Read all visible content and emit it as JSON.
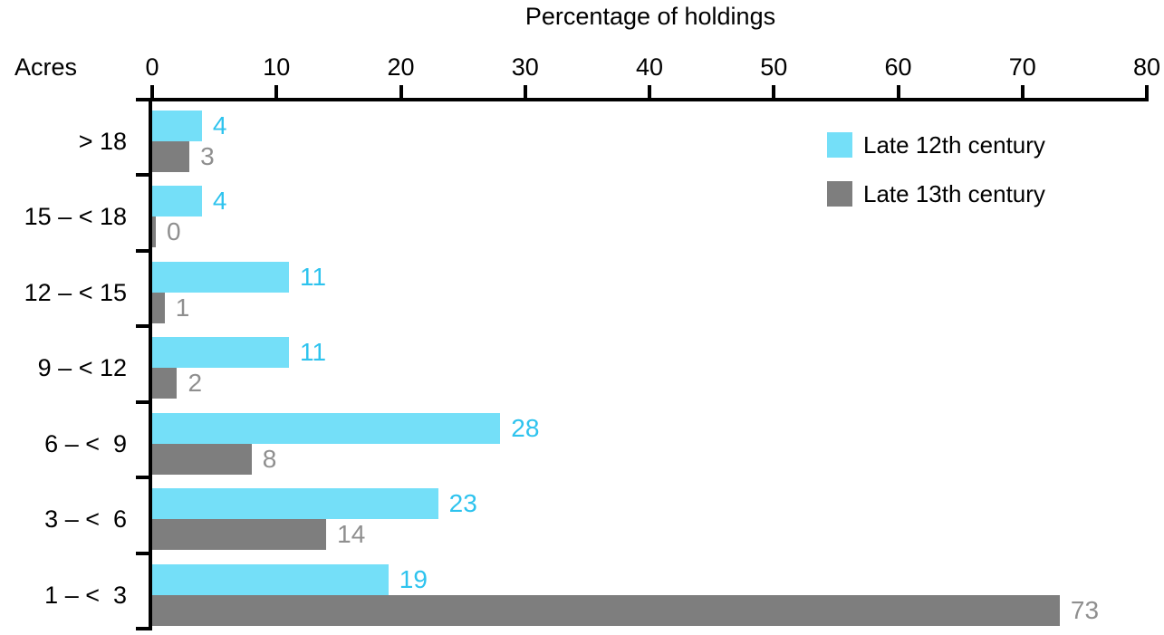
{
  "chart_data": {
    "type": "bar",
    "orientation": "horizontal",
    "title": "Percentage of holdings",
    "ylabel": "Acres",
    "categories": [
      "> 18",
      "15 – < 18",
      "12 – < 15",
      "9 – < 12",
      "6 – <  9",
      "3 – <  6",
      "1 – <  3"
    ],
    "series": [
      {
        "name": "Late 12th century",
        "color": "#74DFF8",
        "label_color": "#2EC3EE",
        "values": [
          4,
          4,
          11,
          11,
          28,
          23,
          19
        ]
      },
      {
        "name": "Late 13th century",
        "color": "#7E7E7E",
        "label_color": "#8F8F8F",
        "values": [
          3,
          0,
          1,
          2,
          8,
          14,
          73
        ]
      }
    ],
    "x_ticks": [
      0,
      10,
      20,
      30,
      40,
      50,
      60,
      70,
      80
    ],
    "xlim": [
      0,
      80
    ],
    "grid": false,
    "legend_position": "top-right",
    "value_labels": true,
    "axis_color": "#000000"
  }
}
